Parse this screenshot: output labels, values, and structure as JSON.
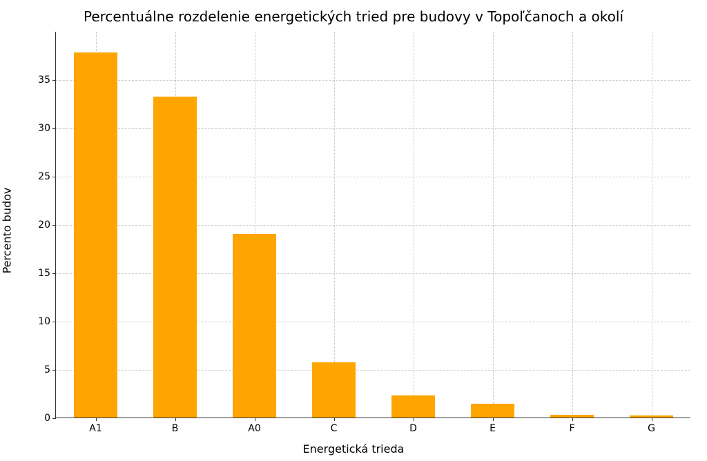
{
  "chart": {
    "type": "bar",
    "title": "Percentuálne rozdelenie energetických tried pre budovy v Topoľčanoch a okolí",
    "title_fontsize": 20,
    "xlabel": "Energetická trieda",
    "ylabel": "Percento budov",
    "label_fontsize": 16,
    "tick_fontsize": 14,
    "background_color": "#ffffff",
    "grid_color": "#cccccc",
    "axis_color": "#333333",
    "categories": [
      "A1",
      "B",
      "A0",
      "C",
      "D",
      "E",
      "F",
      "G"
    ],
    "values": [
      37.8,
      33.2,
      19.0,
      5.7,
      2.3,
      1.4,
      0.3,
      0.2
    ],
    "bar_color": "#ffa500",
    "bar_edge_color": "#ffa500",
    "bar_width": 0.55,
    "ylim": [
      0,
      40
    ],
    "yticks": [
      0,
      5,
      10,
      15,
      20,
      25,
      30,
      35
    ],
    "grid": true,
    "grid_dash": true
  }
}
